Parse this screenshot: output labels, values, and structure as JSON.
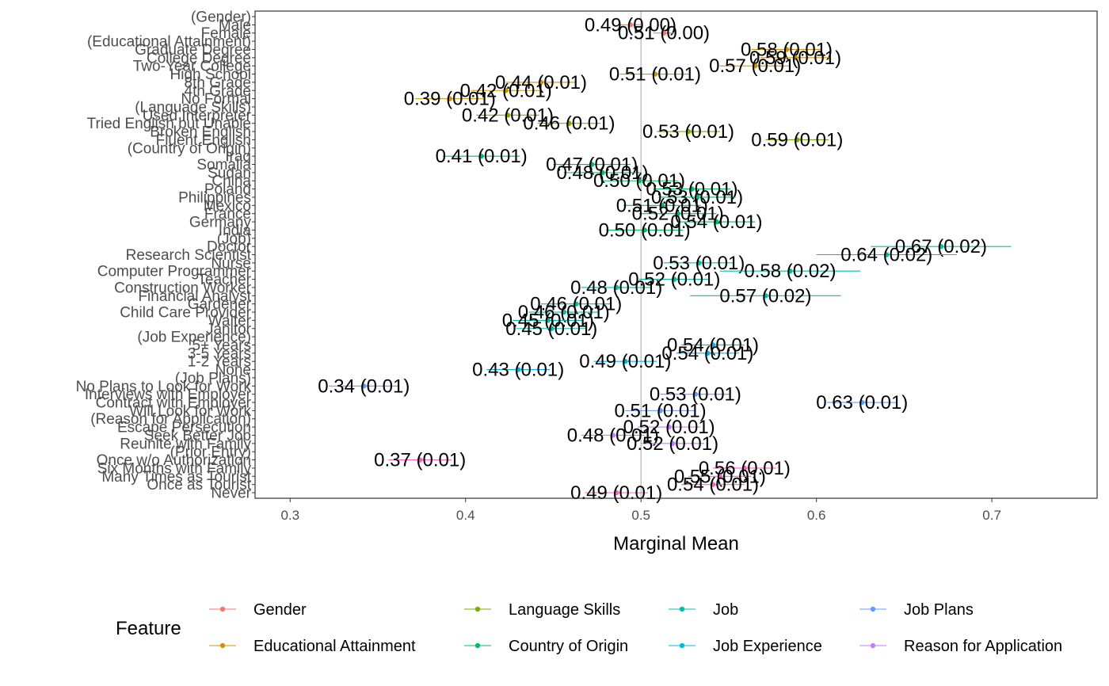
{
  "chart_data": {
    "type": "scatter",
    "xlabel": "Marginal Mean",
    "xlim": [
      0.28,
      0.76
    ],
    "x_ticks": [
      0.3,
      0.4,
      0.5,
      0.6,
      0.7
    ],
    "x_tick_labels": [
      "0.3",
      "0.4",
      "0.5",
      "0.6",
      "0.7"
    ],
    "reference_line": 0.5,
    "grid": false,
    "legend": {
      "title": "Feature",
      "position": "bottom",
      "entries": [
        {
          "name": "Gender",
          "color": "#F8766D"
        },
        {
          "name": "Language Skills",
          "color": "#7CAE00"
        },
        {
          "name": "Job",
          "color": "#00BFA4"
        },
        {
          "name": "Job Plans",
          "color": "#619CFF"
        },
        {
          "name": "Educational Attainment",
          "color": "#CD9600"
        },
        {
          "name": "Country of Origin",
          "color": "#00BE67"
        },
        {
          "name": "Job Experience",
          "color": "#00B8E7"
        },
        {
          "name": "Reason for Application",
          "color": "#C77CFF"
        }
      ]
    },
    "rows": [
      {
        "label": "(Gender)"
      },
      {
        "label": "Male",
        "feature": "Gender",
        "color": "#F8766D",
        "estimate": 0.494,
        "lower": 0.488,
        "upper": 0.5,
        "text": "0.49 (0.00)"
      },
      {
        "label": "Female",
        "feature": "Gender",
        "color": "#F8766D",
        "estimate": 0.513,
        "lower": 0.507,
        "upper": 0.519,
        "text": "0.51 (0.00)"
      },
      {
        "label": "(Educational Attainment)"
      },
      {
        "label": "Graduate Degree",
        "feature": "Educational Attainment",
        "color": "#CD9600",
        "estimate": 0.583,
        "lower": 0.563,
        "upper": 0.603,
        "text": "0.58 (0.01)"
      },
      {
        "label": "College Degree",
        "feature": "Educational Attainment",
        "color": "#CD9600",
        "estimate": 0.588,
        "lower": 0.568,
        "upper": 0.608,
        "text": "0.59 (0.01)"
      },
      {
        "label": "Two-Year College",
        "feature": "Educational Attainment",
        "color": "#CD9600",
        "estimate": 0.565,
        "lower": 0.545,
        "upper": 0.585,
        "text": "0.57 (0.01)"
      },
      {
        "label": "High School",
        "feature": "Educational Attainment",
        "color": "#CD9600",
        "estimate": 0.508,
        "lower": 0.488,
        "upper": 0.528,
        "text": "0.51 (0.01)"
      },
      {
        "label": "8th Grade",
        "feature": "Educational Attainment",
        "color": "#CD9600",
        "estimate": 0.443,
        "lower": 0.423,
        "upper": 0.463,
        "text": "0.44 (0.01)"
      },
      {
        "label": "4th Grade",
        "feature": "Educational Attainment",
        "color": "#CD9600",
        "estimate": 0.423,
        "lower": 0.403,
        "upper": 0.443,
        "text": "0.42 (0.01)"
      },
      {
        "label": "No Formal",
        "feature": "Educational Attainment",
        "color": "#CD9600",
        "estimate": 0.391,
        "lower": 0.371,
        "upper": 0.411,
        "text": "0.39 (0.01)"
      },
      {
        "label": "(Language Skills)"
      },
      {
        "label": "Used Interpreter",
        "feature": "Language Skills",
        "color": "#7CAE00",
        "estimate": 0.424,
        "lower": 0.406,
        "upper": 0.442,
        "text": "0.42 (0.01)"
      },
      {
        "label": "Tried English but Unable",
        "feature": "Language Skills",
        "color": "#7CAE00",
        "estimate": 0.459,
        "lower": 0.441,
        "upper": 0.477,
        "text": "0.46 (0.01)"
      },
      {
        "label": "Broken English",
        "feature": "Language Skills",
        "color": "#7CAE00",
        "estimate": 0.527,
        "lower": 0.509,
        "upper": 0.545,
        "text": "0.53 (0.01)"
      },
      {
        "label": "Fluent English",
        "feature": "Language Skills",
        "color": "#7CAE00",
        "estimate": 0.589,
        "lower": 0.571,
        "upper": 0.607,
        "text": "0.59 (0.01)"
      },
      {
        "label": "(Country of Origin)"
      },
      {
        "label": "Iraq",
        "feature": "Country of Origin",
        "color": "#00BE67",
        "estimate": 0.409,
        "lower": 0.387,
        "upper": 0.431,
        "text": "0.41 (0.01)"
      },
      {
        "label": "Somalia",
        "feature": "Country of Origin",
        "color": "#00BE67",
        "estimate": 0.472,
        "lower": 0.45,
        "upper": 0.494,
        "text": "0.47 (0.01)"
      },
      {
        "label": "Sudan",
        "feature": "Country of Origin",
        "color": "#00BE67",
        "estimate": 0.478,
        "lower": 0.456,
        "upper": 0.5,
        "text": "0.48 (0.01)"
      },
      {
        "label": "China",
        "feature": "Country of Origin",
        "color": "#00BE67",
        "estimate": 0.499,
        "lower": 0.477,
        "upper": 0.521,
        "text": "0.50 (0.01)"
      },
      {
        "label": "Poland",
        "feature": "Country of Origin",
        "color": "#00BE67",
        "estimate": 0.529,
        "lower": 0.507,
        "upper": 0.551,
        "text": "0.53 (0.01)"
      },
      {
        "label": "Philippines",
        "feature": "Country of Origin",
        "color": "#00BE67",
        "estimate": 0.532,
        "lower": 0.51,
        "upper": 0.554,
        "text": "0.53 (0.01)"
      },
      {
        "label": "Mexico",
        "feature": "Country of Origin",
        "color": "#00BE67",
        "estimate": 0.512,
        "lower": 0.49,
        "upper": 0.534,
        "text": "0.51 (0.01)"
      },
      {
        "label": "France",
        "feature": "Country of Origin",
        "color": "#00BE67",
        "estimate": 0.521,
        "lower": 0.499,
        "upper": 0.543,
        "text": "0.52 (0.01)"
      },
      {
        "label": "Germany",
        "feature": "Country of Origin",
        "color": "#00BE67",
        "estimate": 0.543,
        "lower": 0.521,
        "upper": 0.565,
        "text": "0.54 (0.01)"
      },
      {
        "label": "India",
        "feature": "Country of Origin",
        "color": "#00BE67",
        "estimate": 0.502,
        "lower": 0.48,
        "upper": 0.524,
        "text": "0.50 (0.01)"
      },
      {
        "label": "(Job)"
      },
      {
        "label": "Doctor",
        "feature": "Job",
        "color": "#00BFA4",
        "estimate": 0.671,
        "lower": 0.631,
        "upper": 0.711,
        "text": "0.67 (0.02)"
      },
      {
        "label": "Research Scientist",
        "feature": "Job",
        "color": "#00BFA4",
        "estimate": 0.64,
        "lower": 0.6,
        "upper": 0.68,
        "text": "0.64 (0.02)"
      },
      {
        "label": "Nurse",
        "feature": "Job",
        "color": "#00BFA4",
        "estimate": 0.533,
        "lower": 0.513,
        "upper": 0.553,
        "text": "0.53 (0.01)"
      },
      {
        "label": "Computer Programmer",
        "feature": "Job",
        "color": "#00BFA4",
        "estimate": 0.585,
        "lower": 0.545,
        "upper": 0.625,
        "text": "0.58 (0.02)"
      },
      {
        "label": "Teacher",
        "feature": "Job",
        "color": "#00BFA4",
        "estimate": 0.519,
        "lower": 0.499,
        "upper": 0.539,
        "text": "0.52 (0.01)"
      },
      {
        "label": "Construction Worker",
        "feature": "Job",
        "color": "#00BFA4",
        "estimate": 0.486,
        "lower": 0.466,
        "upper": 0.506,
        "text": "0.48 (0.01)"
      },
      {
        "label": "Financial Analyst",
        "feature": "Job",
        "color": "#00BFA4",
        "estimate": 0.571,
        "lower": 0.528,
        "upper": 0.614,
        "text": "0.57 (0.02)"
      },
      {
        "label": "Gardener",
        "feature": "Job",
        "color": "#00BFA4",
        "estimate": 0.463,
        "lower": 0.443,
        "upper": 0.483,
        "text": "0.46 (0.01)"
      },
      {
        "label": "Child Care Provider",
        "feature": "Job",
        "color": "#00BFA4",
        "estimate": 0.456,
        "lower": 0.436,
        "upper": 0.476,
        "text": "0.46 (0.01)"
      },
      {
        "label": "Waiter",
        "feature": "Job",
        "color": "#00BFA4",
        "estimate": 0.447,
        "lower": 0.427,
        "upper": 0.467,
        "text": "0.45 (0.01)"
      },
      {
        "label": "Janitor",
        "feature": "Job",
        "color": "#00BFA4",
        "estimate": 0.449,
        "lower": 0.429,
        "upper": 0.469,
        "text": "0.45 (0.01)"
      },
      {
        "label": "(Job Experience)"
      },
      {
        "label": "5+ Years",
        "feature": "Job Experience",
        "color": "#00B8E7",
        "estimate": 0.541,
        "lower": 0.523,
        "upper": 0.559,
        "text": "0.54 (0.01)"
      },
      {
        "label": "3-5 Years",
        "feature": "Job Experience",
        "color": "#00B8E7",
        "estimate": 0.538,
        "lower": 0.52,
        "upper": 0.556,
        "text": "0.54 (0.01)"
      },
      {
        "label": "1-2 Years",
        "feature": "Job Experience",
        "color": "#00B8E7",
        "estimate": 0.491,
        "lower": 0.473,
        "upper": 0.509,
        "text": "0.49 (0.01)"
      },
      {
        "label": "None",
        "feature": "Job Experience",
        "color": "#00B8E7",
        "estimate": 0.43,
        "lower": 0.412,
        "upper": 0.448,
        "text": "0.43 (0.01)"
      },
      {
        "label": "(Job Plans)"
      },
      {
        "label": "No Plans to Look for Work",
        "feature": "Job Plans",
        "color": "#619CFF",
        "estimate": 0.342,
        "lower": 0.322,
        "upper": 0.362,
        "text": "0.34 (0.01)"
      },
      {
        "label": "Interviews with Employer",
        "feature": "Job Plans",
        "color": "#619CFF",
        "estimate": 0.531,
        "lower": 0.511,
        "upper": 0.551,
        "text": "0.53 (0.01)"
      },
      {
        "label": "Contract with Employer",
        "feature": "Job Plans",
        "color": "#619CFF",
        "estimate": 0.626,
        "lower": 0.606,
        "upper": 0.646,
        "text": "0.63 (0.01)"
      },
      {
        "label": "Will Look for Work",
        "feature": "Job Plans",
        "color": "#619CFF",
        "estimate": 0.511,
        "lower": 0.491,
        "upper": 0.531,
        "text": "0.51 (0.01)"
      },
      {
        "label": "(Reason for Application)"
      },
      {
        "label": "Escape Persecution",
        "feature": "Reason for Application",
        "color": "#C77CFF",
        "estimate": 0.516,
        "lower": 0.498,
        "upper": 0.534,
        "text": "0.52 (0.01)"
      },
      {
        "label": "Seek Better Job",
        "feature": "Reason for Application",
        "color": "#C77CFF",
        "estimate": 0.484,
        "lower": 0.466,
        "upper": 0.502,
        "text": "0.48 (0.01)"
      },
      {
        "label": "Reunite with Family",
        "feature": "Reason for Application",
        "color": "#C77CFF",
        "estimate": 0.518,
        "lower": 0.5,
        "upper": 0.536,
        "text": "0.52 (0.01)"
      },
      {
        "label": "(Prior Entry)"
      },
      {
        "label": "Once w/o Authorization",
        "feature": "Prior Entry",
        "color": "#FF61C3",
        "estimate": 0.374,
        "lower": 0.356,
        "upper": 0.392,
        "text": "0.37 (0.01)"
      },
      {
        "label": "Six Months with Family",
        "feature": "Prior Entry",
        "color": "#FF61C3",
        "estimate": 0.559,
        "lower": 0.541,
        "upper": 0.577,
        "text": "0.56 (0.01)"
      },
      {
        "label": "Many Times as Tourist",
        "feature": "Prior Entry",
        "color": "#FF61C3",
        "estimate": 0.545,
        "lower": 0.527,
        "upper": 0.563,
        "text": "0.55 (0.01)"
      },
      {
        "label": "Once as Tourist",
        "feature": "Prior Entry",
        "color": "#FF61C3",
        "estimate": 0.541,
        "lower": 0.523,
        "upper": 0.559,
        "text": "0.54 (0.01)"
      },
      {
        "label": "Never",
        "feature": "Prior Entry",
        "color": "#FF61C3",
        "estimate": 0.486,
        "lower": 0.468,
        "upper": 0.504,
        "text": "0.49 (0.01)"
      }
    ]
  }
}
